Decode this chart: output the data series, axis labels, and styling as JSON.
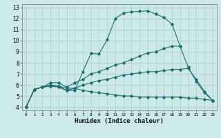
{
  "xlabel": "Humidex (Indice chaleur)",
  "xlim": [
    -0.5,
    23.5
  ],
  "ylim": [
    3.7,
    13.3
  ],
  "xticks": [
    0,
    1,
    2,
    3,
    4,
    5,
    6,
    7,
    8,
    9,
    10,
    11,
    12,
    13,
    14,
    15,
    16,
    17,
    18,
    19,
    20,
    21,
    22,
    23
  ],
  "yticks": [
    4,
    5,
    6,
    7,
    8,
    9,
    10,
    11,
    12,
    13
  ],
  "bg_color": "#cce8e8",
  "line_color": "#1a6e6e",
  "grid_color": "#aacccc",
  "line1_x": [
    0,
    1,
    2,
    3,
    4,
    5,
    6,
    7,
    8,
    9,
    10,
    11,
    12,
    13,
    14,
    15,
    16,
    17,
    18,
    19
  ],
  "line1_y": [
    4.0,
    5.6,
    5.8,
    5.9,
    5.8,
    5.5,
    5.5,
    7.2,
    8.85,
    8.8,
    10.1,
    12.0,
    12.5,
    12.6,
    12.65,
    12.7,
    12.4,
    12.1,
    11.5,
    9.5
  ],
  "line2_x": [
    0,
    1,
    2,
    3,
    4,
    5,
    6,
    7,
    8,
    9,
    10,
    11,
    12,
    13,
    14,
    15,
    16,
    17,
    18,
    19,
    20,
    21,
    22,
    23
  ],
  "line2_y": [
    4.0,
    5.6,
    5.8,
    6.2,
    6.2,
    5.8,
    6.2,
    6.5,
    7.0,
    7.2,
    7.5,
    7.8,
    8.0,
    8.3,
    8.6,
    8.9,
    9.0,
    9.3,
    9.5,
    9.5,
    7.6,
    6.3,
    5.3,
    4.6
  ],
  "line3_x": [
    0,
    1,
    2,
    3,
    4,
    5,
    6,
    7,
    8,
    9,
    10,
    11,
    12,
    13,
    14,
    15,
    16,
    17,
    18,
    19,
    20,
    21,
    22,
    23
  ],
  "line3_y": [
    4.0,
    5.6,
    5.8,
    6.0,
    5.9,
    5.7,
    5.7,
    6.0,
    6.2,
    6.4,
    6.5,
    6.7,
    6.9,
    7.0,
    7.1,
    7.2,
    7.2,
    7.3,
    7.4,
    7.4,
    7.5,
    6.5,
    5.4,
    4.6
  ],
  "line4_x": [
    0,
    1,
    2,
    3,
    4,
    5,
    6,
    7,
    8,
    9,
    10,
    11,
    12,
    13,
    14,
    15,
    16,
    17,
    18,
    19,
    20,
    21,
    22,
    23
  ],
  "line4_y": [
    4.0,
    5.6,
    5.8,
    5.9,
    5.9,
    5.5,
    5.7,
    5.5,
    5.4,
    5.3,
    5.2,
    5.1,
    5.0,
    5.0,
    4.9,
    4.9,
    4.9,
    4.9,
    4.9,
    4.9,
    4.8,
    4.8,
    4.7,
    4.6
  ]
}
